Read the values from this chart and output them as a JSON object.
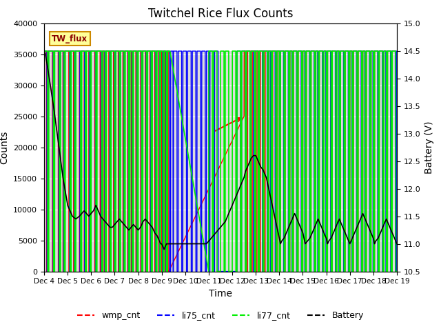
{
  "title": "Twitchel Rice Flux Counts",
  "xlabel": "Time",
  "ylabel_left": "Counts",
  "ylabel_right": "Battery (V)",
  "ylim_left": [
    0,
    40000
  ],
  "ylim_right": [
    10.5,
    15.0
  ],
  "yticks_left": [
    0,
    5000,
    10000,
    15000,
    20000,
    25000,
    30000,
    35000,
    40000
  ],
  "yticks_right": [
    10.5,
    11.0,
    11.5,
    12.0,
    12.5,
    13.0,
    13.5,
    14.0,
    14.5,
    15.0
  ],
  "bg_color": "#dcdcdc",
  "text_box_label": "TW_flux",
  "text_box_facecolor": "#ffff99",
  "text_box_edgecolor": "#cc8800",
  "legend_entries": [
    "wmp_cnt",
    "li75_cnt",
    "li77_cnt",
    "Battery"
  ],
  "wmp_color": "red",
  "li75_color": "blue",
  "li77_color": "#00ee00",
  "battery_color": "black",
  "high_val": 35500,
  "xmin": 4,
  "xmax": 19,
  "xtick_positions": [
    4,
    5,
    6,
    7,
    8,
    9,
    10,
    11,
    12,
    13,
    14,
    15,
    16,
    17,
    18,
    19
  ],
  "xtick_labels": [
    "Dec 4",
    "Dec 5",
    "Dec 6",
    "Dec 7",
    "Dec 8",
    "Dec 9",
    "Dec 10",
    "Dec 11",
    "Dec 12",
    "Dec 13",
    "Dec 14",
    "Dec 15",
    "Dec 16",
    "Dec 17",
    "Dec 18",
    "Dec 19"
  ],
  "npoints": 10000,
  "batt_scale_min": 10.5,
  "batt_scale_max": 15.0,
  "figsize": [
    6.4,
    4.8
  ],
  "dpi": 100,
  "grid_color": "white",
  "grid_lw": 0.8,
  "upper_bg_color": "white",
  "upper_bg_ymin": 35500,
  "upper_bg_ymax": 40000
}
